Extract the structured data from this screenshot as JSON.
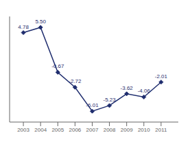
{
  "chart_data": {
    "type": "line",
    "x": [
      2003,
      2004,
      2005,
      2006,
      2007,
      2008,
      2009,
      2010,
      2011
    ],
    "values": [
      4.78,
      5.5,
      -0.67,
      -2.72,
      -6.01,
      -5.23,
      -3.62,
      -4.06,
      -2.01
    ],
    "value_labels": [
      "4.78",
      "5.50",
      "-0.67",
      "-2.72",
      "-6.01",
      "-5.23",
      "-3.62",
      "-4.06",
      "-2.01"
    ],
    "data_labels": true,
    "color": "#1f2d6e",
    "marker": "diamond",
    "xlim": [
      2002.2,
      2012.0
    ],
    "xticks": [
      2003,
      2004,
      2005,
      2006,
      2007,
      2008,
      2009,
      2010,
      2011
    ],
    "ylim": [
      -7.5,
      7.0
    ],
    "yticks": [],
    "tick_labels": "x",
    "grid": false
  }
}
